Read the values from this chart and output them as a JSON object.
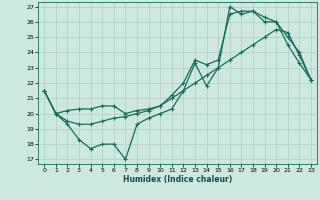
{
  "xlabel": "Humidex (Indice chaleur)",
  "bg_color": "#cce8df",
  "grid_color": "#aacfc7",
  "line_color": "#1a6b5a",
  "xlim": [
    -0.5,
    23.5
  ],
  "ylim": [
    16.7,
    27.3
  ],
  "xticks": [
    0,
    1,
    2,
    3,
    4,
    5,
    6,
    7,
    8,
    9,
    10,
    11,
    12,
    13,
    14,
    15,
    16,
    17,
    18,
    19,
    20,
    21,
    22,
    23
  ],
  "yticks": [
    17,
    18,
    19,
    20,
    21,
    22,
    23,
    24,
    25,
    26,
    27
  ],
  "line1_x": [
    0,
    1,
    2,
    3,
    4,
    5,
    6,
    7,
    8,
    9,
    10,
    11,
    12,
    13,
    14,
    15,
    16,
    17,
    18,
    19,
    20,
    21,
    22,
    23
  ],
  "line1_y": [
    21.5,
    20.0,
    19.3,
    18.3,
    17.7,
    18.0,
    18.0,
    17.0,
    19.3,
    19.7,
    20.0,
    20.3,
    21.5,
    23.3,
    21.8,
    23.0,
    27.0,
    26.5,
    26.7,
    26.0,
    26.0,
    24.5,
    23.3,
    22.2
  ],
  "line2_x": [
    0,
    1,
    2,
    3,
    4,
    5,
    6,
    7,
    8,
    9,
    10,
    11,
    12,
    13,
    14,
    15,
    16,
    17,
    18,
    19,
    20,
    21,
    22,
    23
  ],
  "line2_y": [
    21.5,
    20.0,
    20.2,
    20.3,
    20.3,
    20.5,
    20.5,
    20.0,
    20.2,
    20.3,
    20.5,
    21.2,
    22.0,
    23.5,
    23.2,
    23.5,
    26.5,
    26.7,
    26.7,
    26.3,
    26.0,
    25.0,
    24.0,
    22.2
  ],
  "line3_x": [
    0,
    1,
    2,
    3,
    4,
    5,
    6,
    7,
    8,
    9,
    10,
    11,
    12,
    13,
    14,
    15,
    16,
    17,
    18,
    19,
    20,
    21,
    22,
    23
  ],
  "line3_y": [
    21.5,
    20.0,
    19.5,
    19.3,
    19.3,
    19.5,
    19.7,
    19.8,
    20.0,
    20.2,
    20.5,
    21.0,
    21.5,
    22.0,
    22.5,
    23.0,
    23.5,
    24.0,
    24.5,
    25.0,
    25.5,
    25.3,
    23.8,
    22.2
  ]
}
